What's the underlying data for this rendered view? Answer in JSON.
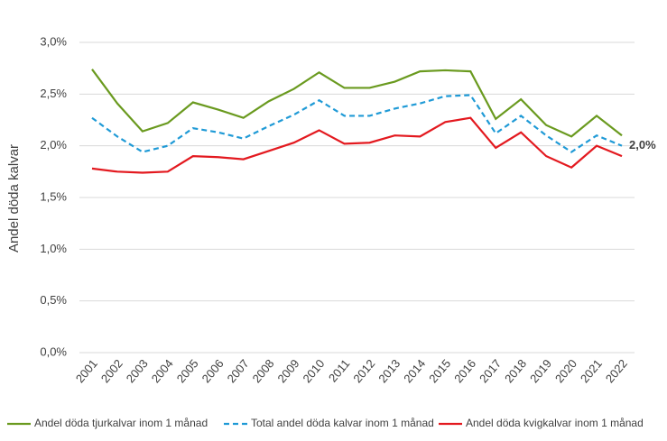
{
  "chart_data": {
    "type": "line",
    "y_label": "Andel döda kalvar",
    "categories": [
      "2001",
      "2002",
      "2003",
      "2004",
      "2005",
      "2006",
      "2007",
      "2008",
      "2009",
      "2010",
      "2011",
      "2012",
      "2013",
      "2014",
      "2015",
      "2016",
      "2017",
      "2018",
      "2019",
      "2020",
      "2021",
      "2022"
    ],
    "series": [
      {
        "name": "Andel döda tjurkalvar inom 1 månad",
        "color": "#6a9a1f",
        "dash": "solid",
        "values": [
          2.74,
          2.41,
          2.14,
          2.22,
          2.42,
          2.35,
          2.27,
          2.43,
          2.55,
          2.71,
          2.56,
          2.56,
          2.62,
          2.72,
          2.73,
          2.72,
          2.26,
          2.45,
          2.2,
          2.09,
          2.29,
          2.1
        ]
      },
      {
        "name": "Total andel döda kalvar inom 1 månad",
        "color": "#1f9ad6",
        "dash": "dashed",
        "values": [
          2.27,
          2.09,
          1.94,
          2.0,
          2.17,
          2.13,
          2.07,
          2.19,
          2.3,
          2.44,
          2.29,
          2.29,
          2.36,
          2.41,
          2.48,
          2.49,
          2.12,
          2.29,
          2.1,
          1.94,
          2.1,
          2.0
        ]
      },
      {
        "name": "Andel döda kvigkalvar inom 1 månad",
        "color": "#e3191f",
        "dash": "solid",
        "values": [
          1.78,
          1.75,
          1.74,
          1.75,
          1.9,
          1.89,
          1.87,
          1.95,
          2.03,
          2.15,
          2.02,
          2.03,
          2.1,
          2.09,
          2.23,
          2.27,
          1.98,
          2.13,
          1.9,
          1.79,
          2.0,
          1.9
        ]
      }
    ],
    "annotation": {
      "text": "2,0%",
      "series": 1
    },
    "ylim": [
      0,
      3
    ],
    "yticks": [
      {
        "value": 0,
        "label": "0,0%"
      },
      {
        "value": 0.5,
        "label": "0,5%"
      },
      {
        "value": 1,
        "label": "1,0%"
      },
      {
        "value": 1.5,
        "label": "1,5%"
      },
      {
        "value": 2,
        "label": "2,0%"
      },
      {
        "value": 2.5,
        "label": "2,5%"
      },
      {
        "value": 3,
        "label": "3,0%"
      }
    ],
    "grid": true,
    "legend": "bottom"
  }
}
